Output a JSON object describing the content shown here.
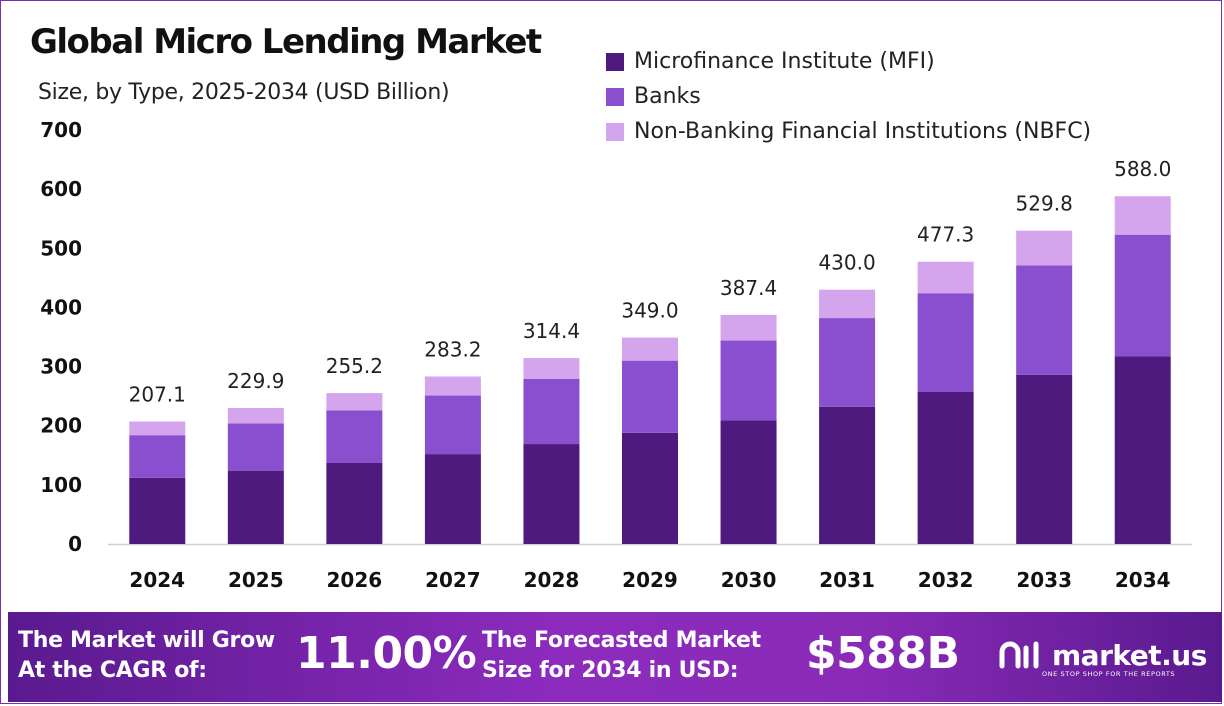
{
  "header": {
    "title": "Global Micro Lending Market",
    "subtitle": "Size, by Type, 2025-2034 (USD Billion)"
  },
  "chart_data": {
    "type": "bar",
    "stacked": true,
    "title": "Global Micro Lending Market",
    "subtitle": "Size, by Type, 2025-2034 (USD Billion)",
    "categories": [
      "2024",
      "2025",
      "2026",
      "2027",
      "2028",
      "2029",
      "2030",
      "2031",
      "2032",
      "2033",
      "2034"
    ],
    "series": [
      {
        "name": "Microfinance Institute (MFI)",
        "color": "#4e1a7e",
        "values": [
          112,
          124,
          137,
          152,
          169,
          188,
          209,
          232,
          257,
          286,
          317
        ]
      },
      {
        "name": "Banks",
        "color": "#8a4fcf",
        "values": [
          72,
          80,
          89,
          99,
          110,
          122,
          135,
          150,
          167,
          185,
          206
        ]
      },
      {
        "name": "Non-Banking Financial Institutions (NBFC)",
        "color": "#d4a5ec",
        "values": [
          23.1,
          25.9,
          29.2,
          32.2,
          35.4,
          39.0,
          43.4,
          48.0,
          53.3,
          58.8,
          65.0
        ]
      }
    ],
    "totals": [
      "207.1",
      "229.9",
      "255.2",
      "283.2",
      "314.4",
      "349.0",
      "387.4",
      "430.0",
      "477.3",
      "529.8",
      "588.0"
    ],
    "yticks": [
      "0",
      "100",
      "200",
      "300",
      "400",
      "500",
      "600",
      "700"
    ],
    "ylim": [
      0,
      700
    ],
    "grid": false,
    "legend_position": "top-right"
  },
  "footer": {
    "cagr_line1": "The Market will Grow",
    "cagr_line2": "At the CAGR of:",
    "cagr_value": "11.00%",
    "forecast_line1": "The Forecasted Market",
    "forecast_line2": "Size for 2034 in USD:",
    "forecast_value": "$588B",
    "brand": "market.us",
    "tagline": "ONE STOP SHOP FOR THE REPORTS"
  }
}
